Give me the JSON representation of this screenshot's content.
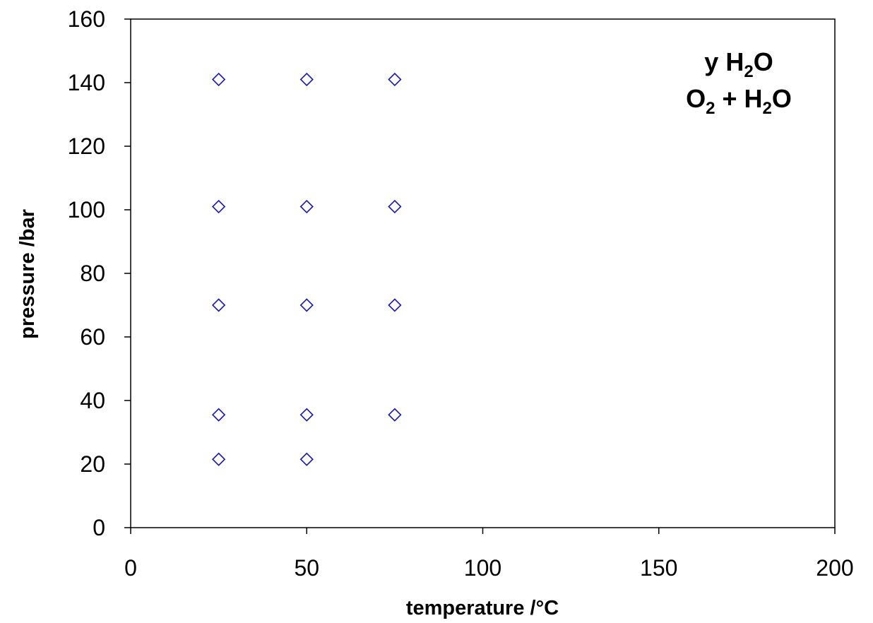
{
  "chart_data": {
    "type": "scatter",
    "title": "",
    "xlabel": "temperature /°C",
    "ylabel": "pressure /bar",
    "xlim": [
      0,
      200
    ],
    "ylim": [
      0,
      160
    ],
    "xticks": [
      0,
      50,
      100,
      150,
      200
    ],
    "yticks": [
      0,
      20,
      40,
      60,
      80,
      100,
      120,
      140,
      160
    ],
    "grid": false,
    "legend": "none",
    "annotation": {
      "line1": [
        "y H",
        "2",
        "O"
      ],
      "line2": [
        "O",
        "2",
        " + H",
        "2",
        "O"
      ]
    },
    "series": [
      {
        "marker": "diamond-open",
        "color": "#1a1ab5",
        "points": [
          {
            "x": 25,
            "y": 141
          },
          {
            "x": 50,
            "y": 141
          },
          {
            "x": 75,
            "y": 141
          },
          {
            "x": 25,
            "y": 101
          },
          {
            "x": 50,
            "y": 101
          },
          {
            "x": 75,
            "y": 101
          },
          {
            "x": 25,
            "y": 70
          },
          {
            "x": 50,
            "y": 70
          },
          {
            "x": 75,
            "y": 70
          },
          {
            "x": 25,
            "y": 35.5
          },
          {
            "x": 50,
            "y": 35.5
          },
          {
            "x": 75,
            "y": 35.5
          },
          {
            "x": 25,
            "y": 21.5
          },
          {
            "x": 50,
            "y": 21.5
          }
        ]
      }
    ]
  }
}
